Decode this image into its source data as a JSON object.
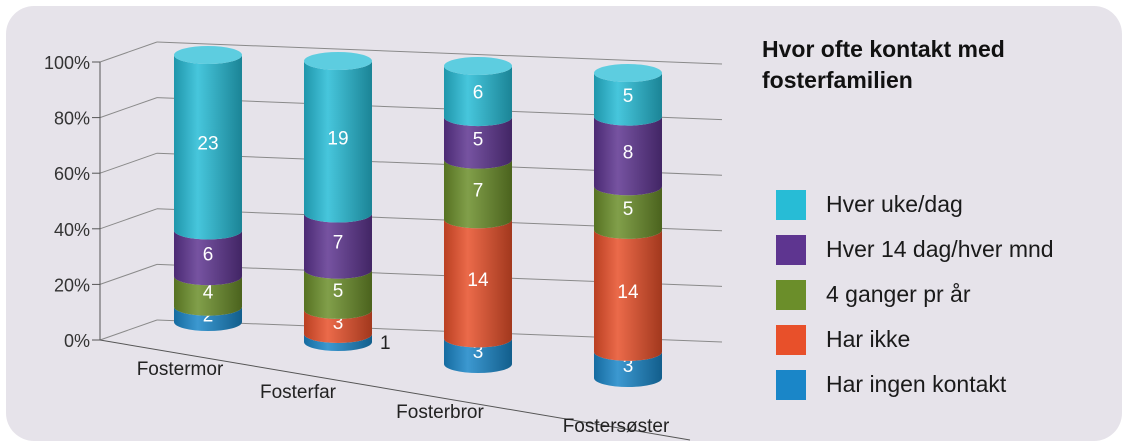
{
  "chart_data": {
    "type": "bar",
    "stacked": true,
    "normalized": true,
    "style": "3d-cylinder",
    "title": "Hvor ofte kontakt med fosterfamilien",
    "categories": [
      "Fostermor",
      "Fosterfar",
      "Fosterbror",
      "Fostersøster"
    ],
    "y_ticks": [
      "0%",
      "20%",
      "40%",
      "60%",
      "80%",
      "100%"
    ],
    "ylim": [
      0,
      100
    ],
    "grid": true,
    "legend_position": "right",
    "series": [
      {
        "name": "Har ingen kontakt",
        "color": "#1a86c8",
        "values": [
          2,
          1,
          3,
          3
        ]
      },
      {
        "name": "Har ikke",
        "color": "#e8502a",
        "values": [
          0,
          3,
          14,
          14
        ]
      },
      {
        "name": "4 ganger pr år",
        "color": "#6b8e2a",
        "values": [
          4,
          5,
          7,
          5
        ]
      },
      {
        "name": "Hver 14 dag/hver mnd",
        "color": "#5e3590",
        "values": [
          6,
          7,
          5,
          8
        ]
      },
      {
        "name": "Hver uke/dag",
        "color": "#27bcd6",
        "values": [
          23,
          19,
          6,
          5
        ]
      }
    ],
    "legend_order": [
      4,
      3,
      2,
      1,
      0
    ]
  }
}
